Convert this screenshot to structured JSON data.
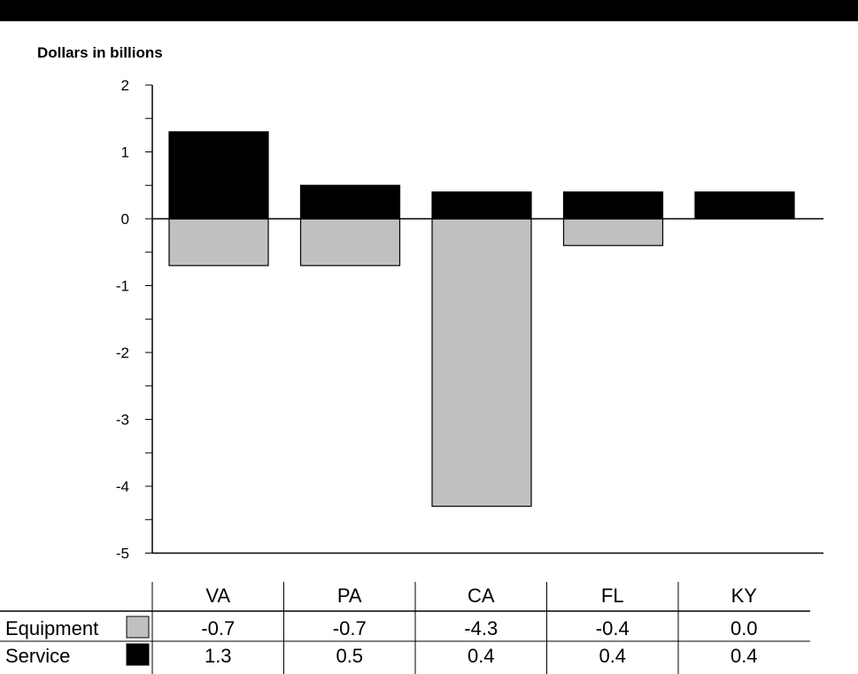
{
  "chart_data": {
    "type": "bar",
    "stacked": true,
    "ylabel": "Dollars in billions",
    "ylim": [
      -5,
      2
    ],
    "yticks": [
      2,
      1,
      0,
      -1,
      -2,
      -3,
      -4,
      -5
    ],
    "categories": [
      "VA",
      "PA",
      "CA",
      "FL",
      "KY"
    ],
    "series": [
      {
        "name": "Equipment",
        "values": [
          -0.7,
          -0.7,
          -4.3,
          -0.4,
          0.0
        ],
        "labels": [
          "-0.7",
          "-0.7",
          "-4.3",
          "-0.4",
          "0.0"
        ],
        "color": "#c0c0c0"
      },
      {
        "name": "Service",
        "values": [
          1.3,
          0.5,
          0.4,
          0.4,
          0.4
        ],
        "labels": [
          "1.3",
          "0.5",
          "0.4",
          "0.4",
          "0.4"
        ],
        "color": "#000000"
      }
    ],
    "grid": false,
    "legend": "data table below chart"
  }
}
